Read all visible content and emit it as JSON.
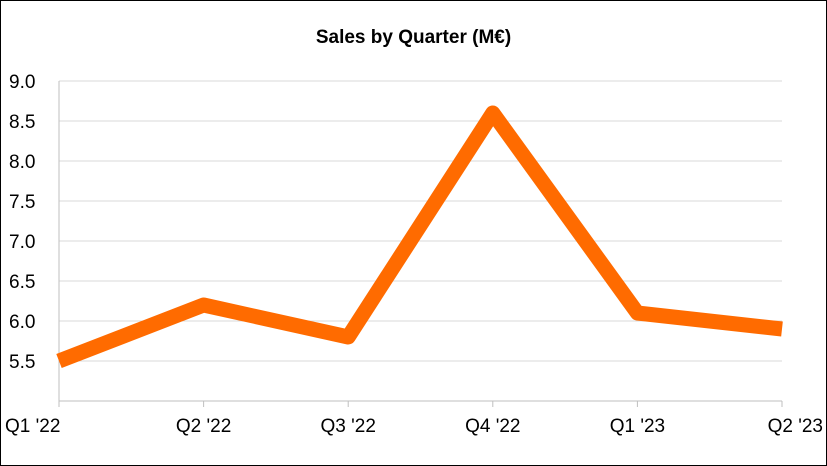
{
  "chart_data": {
    "type": "line",
    "title": "Sales by Quarter (M€)",
    "categories": [
      "Q1 '22",
      "Q2 '22",
      "Q3 '22",
      "Q4 '22",
      "Q1 '23",
      "Q2 '23"
    ],
    "series": [
      {
        "values": [
          5.5,
          6.2,
          5.8,
          8.6,
          6.1,
          5.9
        ],
        "color": "#ff6b00"
      }
    ],
    "ylim": [
      5.0,
      9.0
    ],
    "yticks": [
      "9.0",
      "8.5",
      "8.0",
      "7.5",
      "7.0",
      "6.5",
      "6.0",
      "5.5"
    ],
    "grid": true,
    "legend": "none"
  }
}
